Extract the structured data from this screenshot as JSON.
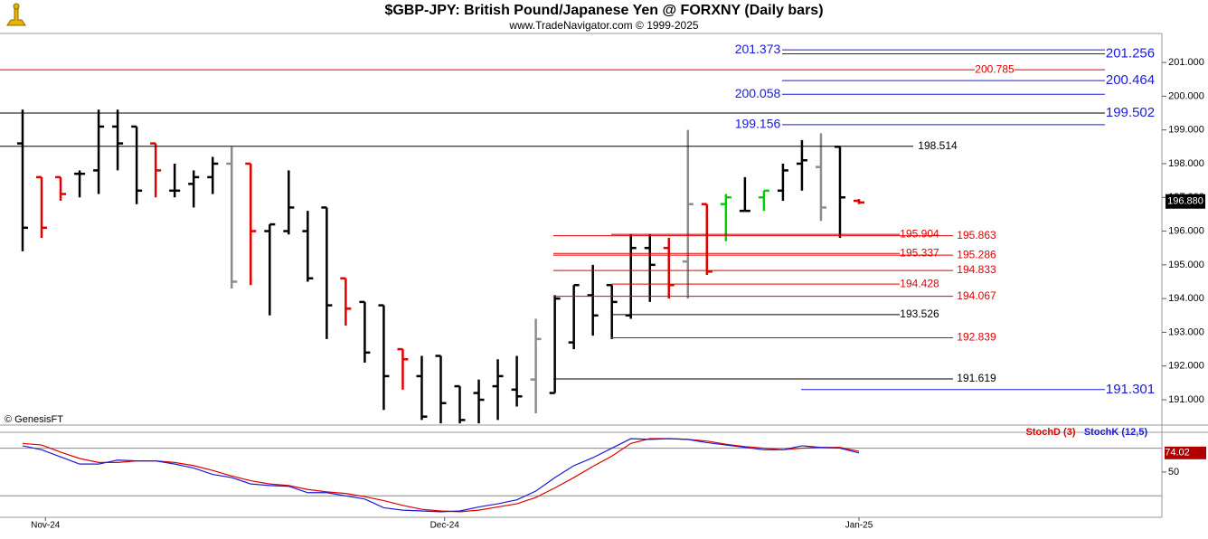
{
  "chart_data": {
    "type": "ohlc",
    "title": "$GBP-JPY:  British Pound/Japanese Yen @ FORXNY  (Daily bars)",
    "subtitle": "www.TradeNavigator.com © 1999-2025",
    "credit": "© GenesisFT",
    "ylim": [
      190.25,
      201.86
    ],
    "yticks": [
      {
        "value": 191,
        "label": "191.000"
      },
      {
        "value": 192,
        "label": "192.000"
      },
      {
        "value": 193,
        "label": "193.000"
      },
      {
        "value": 194,
        "label": "194.000"
      },
      {
        "value": 195,
        "label": "195.000"
      },
      {
        "value": 196,
        "label": "196.000"
      },
      {
        "value": 197,
        "label": "197.000"
      },
      {
        "value": 198,
        "label": "198.000"
      },
      {
        "value": 199,
        "label": "199.000"
      },
      {
        "value": 200,
        "label": "200.000"
      },
      {
        "value": 201,
        "label": "201.000"
      }
    ],
    "xlim": [
      0,
      44
    ],
    "xticks": [
      {
        "value": 1.2,
        "label": "Nov-24"
      },
      {
        "value": 22.2,
        "label": "Dec-24"
      },
      {
        "value": 44,
        "label": "Jan-25"
      }
    ],
    "open": [
      198.6,
      197.6,
      197.6,
      197.7,
      197.8,
      199.1,
      199.1,
      198.6,
      197.2,
      197.4,
      197.6,
      198.0,
      198.0,
      196.0,
      196.0,
      196.0,
      196.7,
      194.6,
      193.9,
      193.8,
      192.5,
      191.7,
      192.3,
      191.4,
      191.2,
      191.4,
      191.3,
      191.6,
      191.2,
      192.7,
      194.1,
      194.4,
      193.5,
      195.5,
      195.5,
      195.1,
      196.8,
      196.8,
      196.6,
      197.0,
      197.2,
      198.0,
      197.9,
      198.5,
      196.9
    ],
    "high": [
      199.6,
      197.6,
      197.6,
      197.8,
      199.6,
      199.6,
      199.1,
      198.6,
      198.0,
      197.8,
      198.2,
      198.5,
      198.0,
      196.2,
      197.8,
      196.6,
      196.7,
      194.6,
      193.9,
      193.8,
      192.5,
      192.3,
      192.3,
      191.4,
      191.6,
      192.2,
      192.3,
      193.4,
      194.1,
      194.4,
      195.0,
      194.4,
      195.9,
      195.9,
      195.8,
      199.0,
      196.8,
      197.1,
      197.6,
      197.2,
      198.0,
      198.7,
      198.9,
      198.5,
      196.95
    ],
    "low": [
      195.4,
      195.8,
      196.9,
      197.0,
      197.1,
      197.8,
      196.8,
      197.0,
      197.0,
      196.7,
      197.1,
      194.3,
      194.4,
      193.5,
      195.9,
      194.5,
      192.8,
      193.2,
      192.1,
      190.7,
      191.3,
      190.4,
      190.3,
      190.3,
      190.3,
      190.4,
      190.8,
      190.6,
      191.2,
      192.5,
      192.9,
      192.8,
      193.4,
      193.9,
      194.0,
      194.0,
      194.7,
      195.7,
      196.6,
      196.6,
      196.9,
      197.2,
      196.3,
      195.8,
      196.8
    ],
    "close": [
      196.1,
      196.1,
      197.1,
      197.7,
      199.1,
      198.6,
      197.2,
      197.8,
      197.2,
      197.6,
      198.0,
      194.5,
      196.0,
      196.2,
      196.7,
      194.6,
      193.8,
      193.7,
      192.4,
      191.7,
      192.2,
      190.5,
      190.9,
      190.4,
      191.0,
      191.7,
      191.1,
      192.8,
      194.0,
      194.4,
      193.5,
      193.9,
      195.5,
      195.0,
      194.4,
      196.8,
      194.8,
      197.0,
      196.6,
      197.2,
      197.8,
      198.1,
      196.7,
      197.0,
      196.85
    ],
    "bar_colors": [
      "#000",
      "#e00000",
      "#e00000",
      "#000",
      "#000",
      "#000",
      "#000",
      "#e00000",
      "#000",
      "#000",
      "#000",
      "#8c8c8c",
      "#e00000",
      "#000",
      "#000",
      "#000",
      "#000",
      "#e00000",
      "#000",
      "#000",
      "#e00000",
      "#000",
      "#000",
      "#000",
      "#000",
      "#000",
      "#000",
      "#8c8c8c",
      "#000",
      "#000",
      "#000",
      "#000",
      "#000",
      "#000",
      "#e00000",
      "#8c8c8c",
      "#e00000",
      "#00d000",
      "#000",
      "#00d000",
      "#000",
      "#000",
      "#8c8c8c",
      "#000",
      "#e00000"
    ],
    "last_price": {
      "value": 196.88,
      "label": "196.880"
    },
    "levels": [
      {
        "value": 201.373,
        "color": "#1a1adc",
        "line_color": "#1a1adc"
      },
      {
        "value": 201.256,
        "color": "#1a1adc",
        "line_color": "#1a1adc"
      },
      {
        "value": 200.785,
        "color": "#e00000",
        "line_color": "#e00000"
      },
      {
        "value": 200.464,
        "color": "#1a1adc",
        "line_color": "#1a1adc"
      },
      {
        "value": 200.058,
        "color": "#1a1adc",
        "line_color": "#1a1adc"
      },
      {
        "value": 199.502,
        "color": "#1a1adc",
        "line_color": "#000"
      },
      {
        "value": 199.156,
        "color": "#1a1adc",
        "line_color": "#1a1adc"
      },
      {
        "value": 198.514,
        "color": "#000",
        "line_color": "#000"
      },
      {
        "value": 195.904,
        "color": "#e00000",
        "line_color": "#b00000"
      },
      {
        "value": 195.863,
        "color": "#e00000",
        "line_color": "#e00000"
      },
      {
        "value": 195.337,
        "color": "#e00000",
        "line_color": "#e00000"
      },
      {
        "value": 195.286,
        "color": "#e00000",
        "line_color": "#e00000"
      },
      {
        "value": 194.833,
        "color": "#e00000",
        "line_color": "#e00000"
      },
      {
        "value": 194.428,
        "color": "#e00000",
        "line_color": "#e00000"
      },
      {
        "value": 194.067,
        "color": "#e00000",
        "line_color": "#e00000"
      },
      {
        "value": 193.526,
        "color": "#000",
        "line_color": "#000"
      },
      {
        "value": 192.839,
        "color": "#e00000",
        "line_color": "#e00000"
      },
      {
        "value": 191.619,
        "color": "#000",
        "line_color": "#000"
      },
      {
        "value": 191.301,
        "color": "#1a1adc",
        "line_color": "#1a1adc"
      }
    ],
    "stoch": {
      "ylim": [
        -7,
        100
      ],
      "yticks": [
        50
      ],
      "levels": [
        80,
        20
      ],
      "series": [
        {
          "name": "StochD (3)",
          "color": "#e00000",
          "values": [
            86,
            84,
            75,
            67,
            62,
            62,
            64,
            64,
            62,
            58,
            52,
            45,
            39,
            35,
            33,
            28,
            25,
            23,
            19,
            14,
            8,
            3,
            1,
            0,
            2,
            6,
            10,
            18,
            30,
            43,
            57,
            70,
            86,
            92,
            92,
            91,
            89,
            85,
            82,
            80,
            78,
            80,
            81,
            81,
            76
          ]
        },
        {
          "name": "StochK (12,5)",
          "color": "#1a1adc",
          "values": [
            83,
            78,
            69,
            60,
            60,
            65,
            64,
            64,
            60,
            55,
            47,
            43,
            35,
            33,
            32,
            24,
            24,
            20,
            16,
            5,
            2,
            1,
            0,
            1,
            6,
            10,
            15,
            26,
            43,
            58,
            68,
            80,
            92,
            91,
            92,
            91,
            87,
            84,
            81,
            78,
            78,
            83,
            81,
            80,
            74.02
          ],
          "value_labels": {
            "44": "74.02"
          }
        }
      ]
    }
  }
}
